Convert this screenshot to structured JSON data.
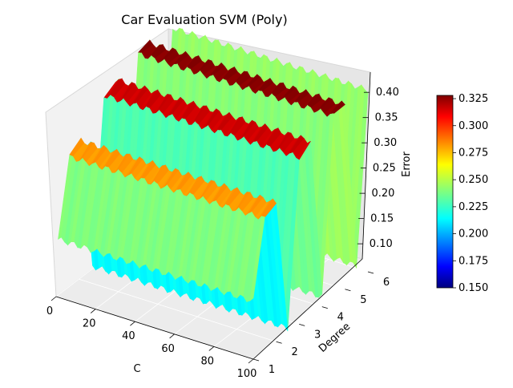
{
  "chart_data": {
    "type": "surface3d",
    "title": "Car Evaluation SVM (Poly)",
    "xlabel": "C",
    "ylabel": "Degree",
    "zlabel": "Error",
    "xticks": [
      "0",
      "20",
      "40",
      "60",
      "80",
      "100"
    ],
    "yticks": [
      "1",
      "2",
      "3",
      "4",
      "5",
      "6"
    ],
    "zticks": [
      "0.10",
      "0.15",
      "0.20",
      "0.25",
      "0.30",
      "0.35",
      "0.40"
    ],
    "xlim": [
      0,
      100
    ],
    "ylim": [
      1,
      6
    ],
    "zlim": [
      0.07,
      0.44
    ],
    "colormap": "jet",
    "colorbar": {
      "range": [
        0.15,
        0.328
      ],
      "ticks": [
        "0.150",
        "0.175",
        "0.200",
        "0.225",
        "0.250",
        "0.275",
        "0.300",
        "0.325"
      ]
    },
    "surface": {
      "description_values": "ridges of error along Degree; plateau at odd degrees near C sweep",
      "degree_grid": [
        1,
        1.5,
        2,
        2.5,
        3,
        3.5,
        4,
        4.5,
        5,
        5.5,
        6
      ],
      "error_profile": [
        0.185,
        0.33,
        0.345,
        0.08,
        0.4,
        0.415,
        0.09,
        0.43,
        0.435,
        0.1,
        0.43
      ],
      "c_range": [
        1,
        100
      ]
    }
  }
}
